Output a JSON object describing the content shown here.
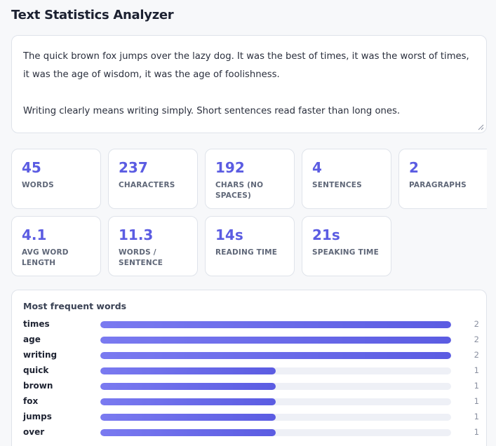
{
  "app": {
    "title": "Text Statistics Analyzer"
  },
  "input": {
    "text": "The quick brown fox jumps over the lazy dog. It was the best of times, it was the worst of times, it was the age of wisdom, it was the age of foolishness.\n\nWriting clearly means writing simply. Short sentences read faster than long ones."
  },
  "stats": [
    {
      "value": "45",
      "label": "WORDS"
    },
    {
      "value": "237",
      "label": "CHARACTERS"
    },
    {
      "value": "192",
      "label": "CHARS (NO SPACES)"
    },
    {
      "value": "4",
      "label": "SENTENCES"
    },
    {
      "value": "2",
      "label": "PARAGRAPHS"
    },
    {
      "value": "4.1",
      "label": "AVG WORD LENGTH"
    },
    {
      "value": "11.3",
      "label": "WORDS / SENTENCE"
    },
    {
      "value": "14s",
      "label": "READING TIME"
    },
    {
      "value": "21s",
      "label": "SPEAKING TIME"
    }
  ],
  "frequency": {
    "title": "Most frequent words",
    "max": 2,
    "words": [
      {
        "word": "times",
        "count": 2
      },
      {
        "word": "age",
        "count": 2
      },
      {
        "word": "writing",
        "count": 2
      },
      {
        "word": "quick",
        "count": 1
      },
      {
        "word": "brown",
        "count": 1
      },
      {
        "word": "fox",
        "count": 1
      },
      {
        "word": "jumps",
        "count": 1
      },
      {
        "word": "over",
        "count": 1
      }
    ]
  },
  "colors": {
    "accent": "#5b5ce2",
    "track": "#eef0f6",
    "border": "#dfe3ea"
  }
}
